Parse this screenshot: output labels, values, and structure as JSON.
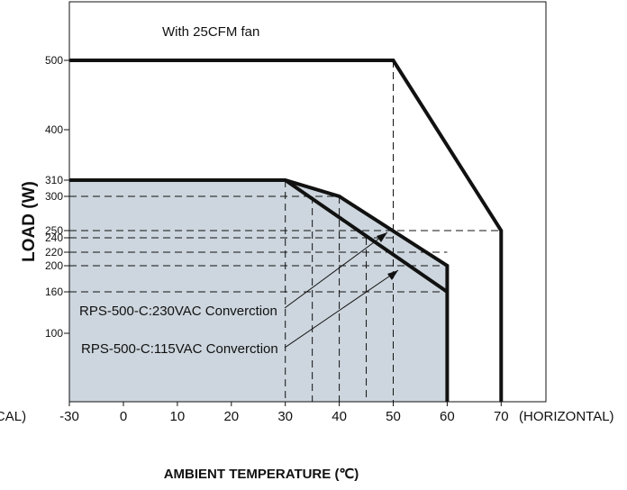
{
  "chart_data": {
    "type": "line",
    "title": "With 25CFM fan",
    "xlabel": "AMBIENT TEMPERATURE (℃)",
    "ylabel": "LOAD (W)",
    "xlim": [
      -30,
      70
    ],
    "x_ticks": [
      "-30",
      "0",
      "10",
      "20",
      "30",
      "40",
      "50",
      "60",
      "70"
    ],
    "x_label_left": "(VERTICAL)",
    "x_label_right": "(HORIZONTAL)",
    "y_ticks": [
      "100",
      "160",
      "200",
      "220",
      "240",
      "250",
      "300",
      "310",
      "400",
      "500"
    ],
    "series": [
      {
        "name": "With 25CFM fan",
        "x": [
          -30,
          50,
          70,
          70
        ],
        "y": [
          500,
          500,
          250,
          0
        ]
      },
      {
        "name": "",
        "x": [
          -30,
          30,
          40,
          60,
          60
        ],
        "y": [
          310,
          310,
          300,
          200,
          0
        ]
      },
      {
        "name": "",
        "x": [
          30,
          60
        ],
        "y": [
          310,
          160
        ]
      }
    ],
    "annotations": [
      {
        "text": "RPS-500-C:230VAC Converction",
        "target": [
          50,
          240
        ]
      },
      {
        "text": "RPS-500-C:115VAC Converction",
        "target": [
          50,
          220
        ]
      }
    ],
    "shaded_region": "derating area at 310W",
    "grid": false
  }
}
